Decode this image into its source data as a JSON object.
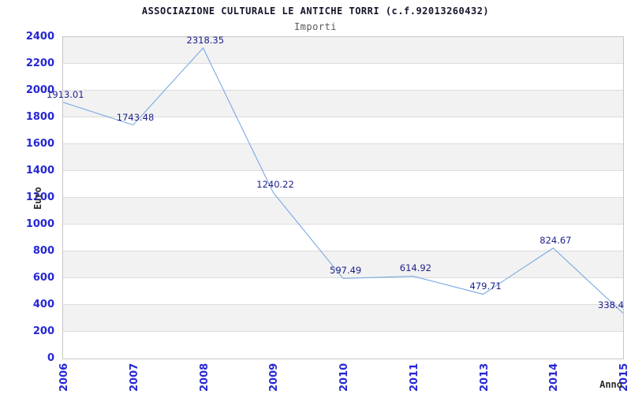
{
  "chart_data": {
    "type": "line",
    "title": "ASSOCIAZIONE CULTURALE LE ANTICHE TORRI (c.f.92013260432)",
    "subtitle": "Importi",
    "xlabel": "Anno",
    "ylabel": "Euro",
    "categories": [
      "2006",
      "2007",
      "2008",
      "2009",
      "2010",
      "2011",
      "2013",
      "2014",
      "2015"
    ],
    "values": [
      1913.01,
      1743.48,
      2318.35,
      1240.22,
      597.49,
      614.92,
      479.71,
      824.67,
      338.4
    ],
    "value_labels": [
      "1913.01",
      "1743.48",
      "2318.35",
      "1240.22",
      "597.49",
      "614.92",
      "479.71",
      "824.67",
      "338.4"
    ],
    "ylim": [
      0,
      2400
    ],
    "ytick_step": 200,
    "ytick_labels": [
      "2400",
      "2200",
      "2000",
      "1800",
      "1600",
      "1400",
      "1200",
      "1000",
      "800",
      "600",
      "400",
      "200",
      "0"
    ],
    "grid": true,
    "legend_position": "none",
    "colors": {
      "line": "#6da3e0",
      "tick_label": "#2626d4",
      "value_label": "#1e1e8c",
      "band_fill": "#f2f2f2",
      "band_alt": "#ffffff",
      "grid_line": "#dcdcdc",
      "frame": "#c6c6c6",
      "title": "#15152b",
      "subtitle": "#5a5a5a",
      "axis_title": "#2b2b2b",
      "background": "#ffffff"
    }
  }
}
